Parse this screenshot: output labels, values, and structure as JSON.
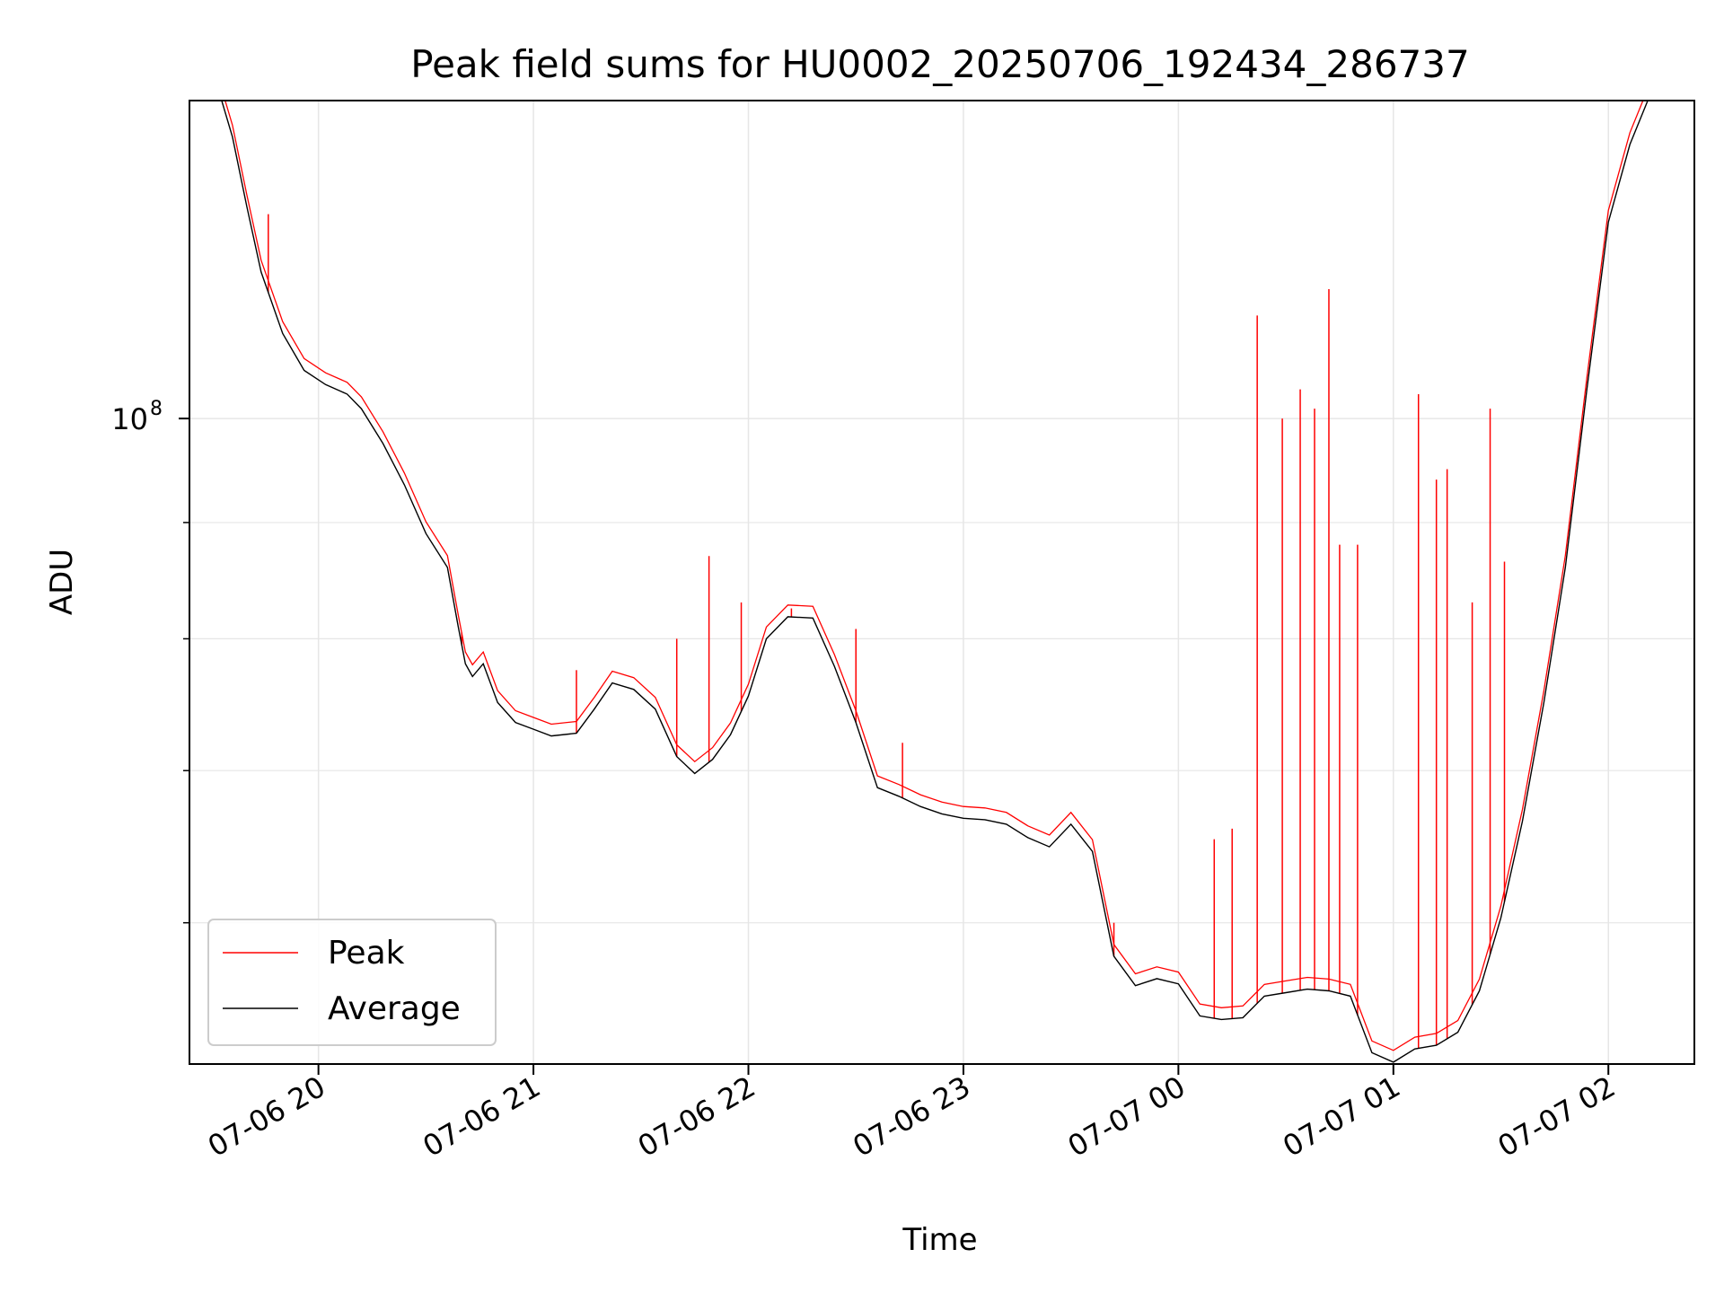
{
  "chart_data": {
    "type": "line",
    "title": "Peak field sums for HU0002_20250706_192434_286737",
    "xlabel": "Time",
    "ylabel": "ADU",
    "y_scale": "log",
    "ylim": [
      52000000,
      138000000
    ],
    "xlim": [
      "2025-07-06 19:24",
      "2025-07-07 02:24"
    ],
    "grid": true,
    "legend_position": "lower-left",
    "x_ticks": [
      {
        "t": "2025-07-06 20:00",
        "label": "07-06 20"
      },
      {
        "t": "2025-07-06 21:00",
        "label": "07-06 21"
      },
      {
        "t": "2025-07-06 22:00",
        "label": "07-06 22"
      },
      {
        "t": "2025-07-06 23:00",
        "label": "07-06 23"
      },
      {
        "t": "2025-07-07 00:00",
        "label": "07-07 00"
      },
      {
        "t": "2025-07-07 01:00",
        "label": "07-07 01"
      },
      {
        "t": "2025-07-07 02:00",
        "label": "07-07 02"
      }
    ],
    "y_major_tick": {
      "value": 100000000,
      "label_base": "10",
      "label_exp": "8"
    },
    "y_minor_ticks": [
      60000000,
      70000000,
      80000000,
      90000000,
      200000000
    ],
    "series": [
      {
        "name": "Average",
        "color": "#000000",
        "points": [
          [
            "2025-07-06 19:24",
            138000000
          ],
          [
            "2025-07-06 19:33",
            138000000
          ],
          [
            "2025-07-06 19:36",
            133000000
          ],
          [
            "2025-07-06 19:40",
            124000000
          ],
          [
            "2025-07-06 19:44",
            116000000
          ],
          [
            "2025-07-06 19:50",
            109000000
          ],
          [
            "2025-07-06 19:56",
            105000000
          ],
          [
            "2025-07-06 20:02",
            103500000
          ],
          [
            "2025-07-06 20:08",
            102500000
          ],
          [
            "2025-07-06 20:12",
            101000000
          ],
          [
            "2025-07-06 20:18",
            97500000
          ],
          [
            "2025-07-06 20:24",
            93500000
          ],
          [
            "2025-07-06 20:30",
            89000000
          ],
          [
            "2025-07-06 20:36",
            86000000
          ],
          [
            "2025-07-06 20:39",
            81000000
          ],
          [
            "2025-07-06 20:41",
            78000000
          ],
          [
            "2025-07-06 20:43",
            77000000
          ],
          [
            "2025-07-06 20:46",
            78000000
          ],
          [
            "2025-07-06 20:50",
            75000000
          ],
          [
            "2025-07-06 20:55",
            73500000
          ],
          [
            "2025-07-06 21:00",
            73000000
          ],
          [
            "2025-07-06 21:05",
            72500000
          ],
          [
            "2025-07-06 21:12",
            72700000
          ],
          [
            "2025-07-06 21:17",
            74500000
          ],
          [
            "2025-07-06 21:22",
            76500000
          ],
          [
            "2025-07-06 21:28",
            76000000
          ],
          [
            "2025-07-06 21:34",
            74500000
          ],
          [
            "2025-07-06 21:40",
            71000000
          ],
          [
            "2025-07-06 21:45",
            69800000
          ],
          [
            "2025-07-06 21:50",
            70800000
          ],
          [
            "2025-07-06 21:55",
            72600000
          ],
          [
            "2025-07-06 22:00",
            75500000
          ],
          [
            "2025-07-06 22:05",
            80000000
          ],
          [
            "2025-07-06 22:11",
            81800000
          ],
          [
            "2025-07-06 22:18",
            81700000
          ],
          [
            "2025-07-06 22:24",
            77800000
          ],
          [
            "2025-07-06 22:30",
            73500000
          ],
          [
            "2025-07-06 22:36",
            68800000
          ],
          [
            "2025-07-06 22:42",
            68200000
          ],
          [
            "2025-07-06 22:48",
            67500000
          ],
          [
            "2025-07-06 22:54",
            67000000
          ],
          [
            "2025-07-06 23:00",
            66700000
          ],
          [
            "2025-07-06 23:06",
            66600000
          ],
          [
            "2025-07-06 23:12",
            66300000
          ],
          [
            "2025-07-06 23:18",
            65400000
          ],
          [
            "2025-07-06 23:24",
            64800000
          ],
          [
            "2025-07-06 23:30",
            66300000
          ],
          [
            "2025-07-06 23:36",
            64500000
          ],
          [
            "2025-07-06 23:42",
            58000000
          ],
          [
            "2025-07-06 23:48",
            56300000
          ],
          [
            "2025-07-06 23:54",
            56700000
          ],
          [
            "2025-07-07 00:00",
            56400000
          ],
          [
            "2025-07-07 00:06",
            54600000
          ],
          [
            "2025-07-07 00:12",
            54400000
          ],
          [
            "2025-07-07 00:18",
            54500000
          ],
          [
            "2025-07-07 00:24",
            55700000
          ],
          [
            "2025-07-07 00:30",
            55900000
          ],
          [
            "2025-07-07 00:36",
            56100000
          ],
          [
            "2025-07-07 00:42",
            56000000
          ],
          [
            "2025-07-07 00:48",
            55700000
          ],
          [
            "2025-07-07 00:54",
            52600000
          ],
          [
            "2025-07-07 01:00",
            52100000
          ],
          [
            "2025-07-07 01:06",
            52800000
          ],
          [
            "2025-07-07 01:12",
            53000000
          ],
          [
            "2025-07-07 01:18",
            53700000
          ],
          [
            "2025-07-07 01:24",
            56000000
          ],
          [
            "2025-07-07 01:30",
            60300000
          ],
          [
            "2025-07-07 01:36",
            66500000
          ],
          [
            "2025-07-07 01:42",
            75000000
          ],
          [
            "2025-07-07 01:48",
            86000000
          ],
          [
            "2025-07-07 01:54",
            103000000
          ],
          [
            "2025-07-07 02:00",
            122000000
          ],
          [
            "2025-07-07 02:06",
            132000000
          ],
          [
            "2025-07-07 02:11",
            138000000
          ],
          [
            "2025-07-07 02:24",
            138000000
          ]
        ]
      },
      {
        "name": "Peak",
        "color": "#ff0000",
        "note_spikes": true,
        "spikes": [
          [
            "2025-07-06 19:46",
            123000000
          ],
          [
            "2025-07-06 20:40",
            80500000
          ],
          [
            "2025-07-06 21:12",
            77500000
          ],
          [
            "2025-07-06 21:40",
            80000000
          ],
          [
            "2025-07-06 21:49",
            87000000
          ],
          [
            "2025-07-06 21:58",
            83000000
          ],
          [
            "2025-07-06 22:12",
            82500000
          ],
          [
            "2025-07-06 22:30",
            80800000
          ],
          [
            "2025-07-06 22:43",
            72000000
          ],
          [
            "2025-07-06 23:42",
            60000000
          ],
          [
            "2025-07-07 00:10",
            65300000
          ],
          [
            "2025-07-07 00:15",
            66000000
          ],
          [
            "2025-07-07 00:22",
            111000000
          ],
          [
            "2025-07-07 00:29",
            100000000
          ],
          [
            "2025-07-07 00:34",
            103000000
          ],
          [
            "2025-07-07 00:38",
            101000000
          ],
          [
            "2025-07-07 00:42",
            114000000
          ],
          [
            "2025-07-07 00:45",
            88000000
          ],
          [
            "2025-07-07 00:50",
            88000000
          ],
          [
            "2025-07-07 01:07",
            102500000
          ],
          [
            "2025-07-07 01:12",
            94000000
          ],
          [
            "2025-07-07 01:15",
            95000000
          ],
          [
            "2025-07-07 01:22",
            83000000
          ],
          [
            "2025-07-07 01:27",
            101000000
          ],
          [
            "2025-07-07 01:31",
            86500000
          ]
        ]
      }
    ]
  }
}
